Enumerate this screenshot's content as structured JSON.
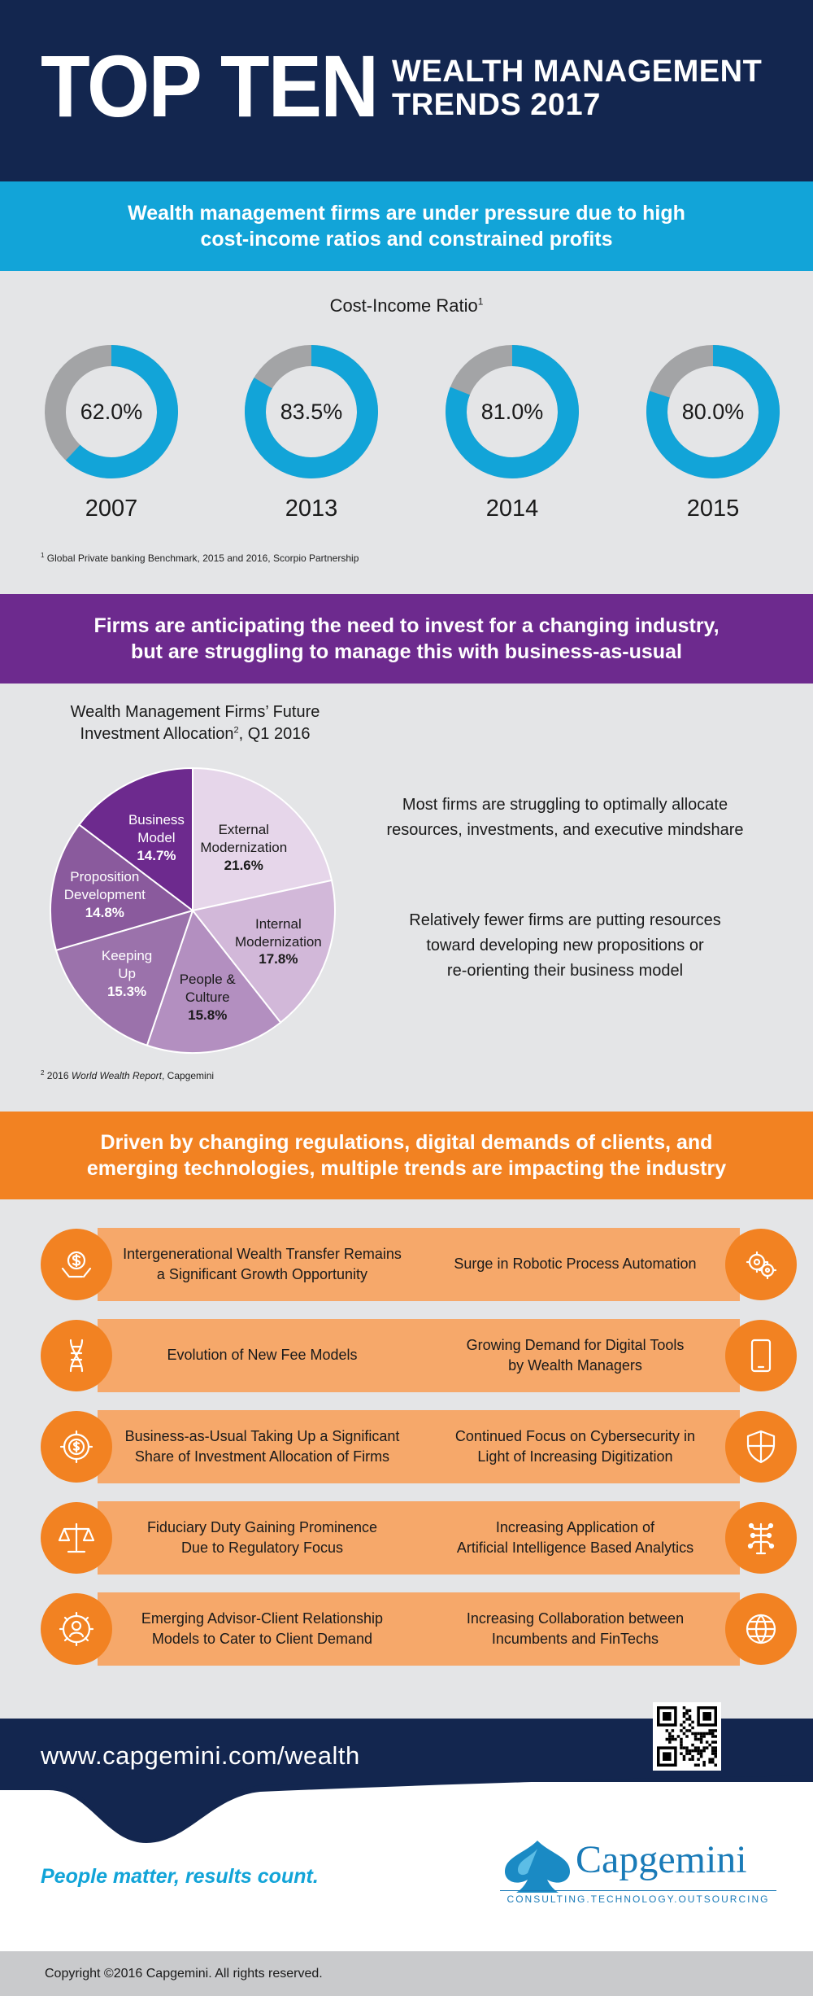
{
  "header": {
    "big_title": "TOP TEN",
    "sub_line1": "WEALTH MANAGEMENT",
    "sub_line2": "TRENDS 2017"
  },
  "section1": {
    "banner_line1": "Wealth management firms are under pressure due to high",
    "banner_line2": "cost-income ratios and constrained profits",
    "chart_title": "Cost-Income Ratio",
    "chart_title_note": "1",
    "footnote_marker": "1",
    "footnote": "Global Private banking Benchmark, 2015 and 2016, Scorpio Partnership"
  },
  "section2": {
    "banner_line1": "Firms are anticipating the need to invest for a changing industry,",
    "banner_line2": "but are struggling to manage this with business-as-usual",
    "pie_title_line1": "Wealth Management Firms’ Future",
    "pie_title_line2a": "Investment Allocation",
    "pie_title_note": "2",
    "pie_title_line2b": ", Q1 2016",
    "side_text1_line1": "Most firms are struggling to optimally allocate",
    "side_text1_line2": "resources, investments, and executive mindshare",
    "side_text2_line1": "Relatively fewer firms are putting resources",
    "side_text2_line2": "toward developing new propositions or",
    "side_text2_line3": "re-orienting their business model",
    "footnote_marker": "2",
    "footnote_year": "2016",
    "footnote_title": "World Wealth Report",
    "footnote_rest": ", Capgemini"
  },
  "section3": {
    "banner_line1": "Driven by changing regulations, digital demands of clients, and",
    "banner_line2": "emerging technologies, multiple trends are impacting the industry",
    "trends_left": [
      {
        "line1": "Intergenerational Wealth Transfer Remains",
        "line2": "a Significant Growth Opportunity",
        "icon": "money-hands-icon"
      },
      {
        "line1": "Evolution of New Fee Models",
        "line2": "",
        "icon": "dna-icon"
      },
      {
        "line1": "Business-as-Usual Taking Up a Significant",
        "line2": "Share of Investment Allocation of Firms",
        "icon": "dollar-gear-icon"
      },
      {
        "line1": "Fiduciary Duty Gaining Prominence",
        "line2": "Due to Regulatory Focus",
        "icon": "scales-icon"
      },
      {
        "line1": "Emerging Advisor-Client Relationship",
        "line2": "Models to Cater to Client Demand",
        "icon": "person-gear-icon"
      }
    ],
    "trends_right": [
      {
        "line1": "Surge in Robotic Process Automation",
        "line2": "",
        "icon": "gears-icon"
      },
      {
        "line1": "Growing Demand for Digital Tools",
        "line2": "by Wealth Managers",
        "icon": "tablet-icon"
      },
      {
        "line1": "Continued Focus on Cybersecurity in",
        "line2": "Light of Increasing Digitization",
        "icon": "shield-icon"
      },
      {
        "line1": "Increasing Application of",
        "line2": "Artificial Intelligence Based Analytics",
        "icon": "brain-circuit-icon"
      },
      {
        "line1": "Increasing Collaboration between",
        "line2": "Incumbents and FinTechs",
        "icon": "globe-icon"
      }
    ]
  },
  "footer": {
    "url": "www.capgemini.com/wealth",
    "slogan": "People matter, results count.",
    "logo_name": "Capgemini",
    "logo_tagline": "CONSULTING.TECHNOLOGY.OUTSOURCING",
    "copyright": "Copyright ©2016 Capgemini. All rights reserved."
  },
  "colors": {
    "navy": "#13264f",
    "cyan": "#12a4d8",
    "purple": "#6d2a8e",
    "orange": "#f28222",
    "light_orange": "#f6a86a",
    "gray_bg": "#e4e5e7",
    "donut_gray": "#a3a4a6"
  },
  "chart_data": [
    {
      "type": "pie",
      "subtype": "donut",
      "title": "Cost-Income Ratio",
      "categories": [
        "2007",
        "2013",
        "2014",
        "2015"
      ],
      "values": [
        62.0,
        83.5,
        81.0,
        80.0
      ],
      "value_labels": [
        "62.0%",
        "83.5%",
        "81.0%",
        "80.0%"
      ],
      "unit": "%"
    },
    {
      "type": "pie",
      "title": "Wealth Management Firms’ Future Investment Allocation, Q1 2016",
      "categories": [
        "External Modernization",
        "Internal Modernization",
        "People & Culture",
        "Keeping Up",
        "Proposition Development",
        "Business Model"
      ],
      "values": [
        21.6,
        17.8,
        15.8,
        15.3,
        14.8,
        14.7
      ],
      "value_labels": [
        "21.6%",
        "17.8%",
        "15.8%",
        "15.3%",
        "14.8%",
        "14.7%"
      ],
      "colors": [
        "#e6d6ea",
        "#d2b8d9",
        "#b38fc0",
        "#9b72ab",
        "#8a5a9d",
        "#6d2a8e"
      ]
    }
  ]
}
